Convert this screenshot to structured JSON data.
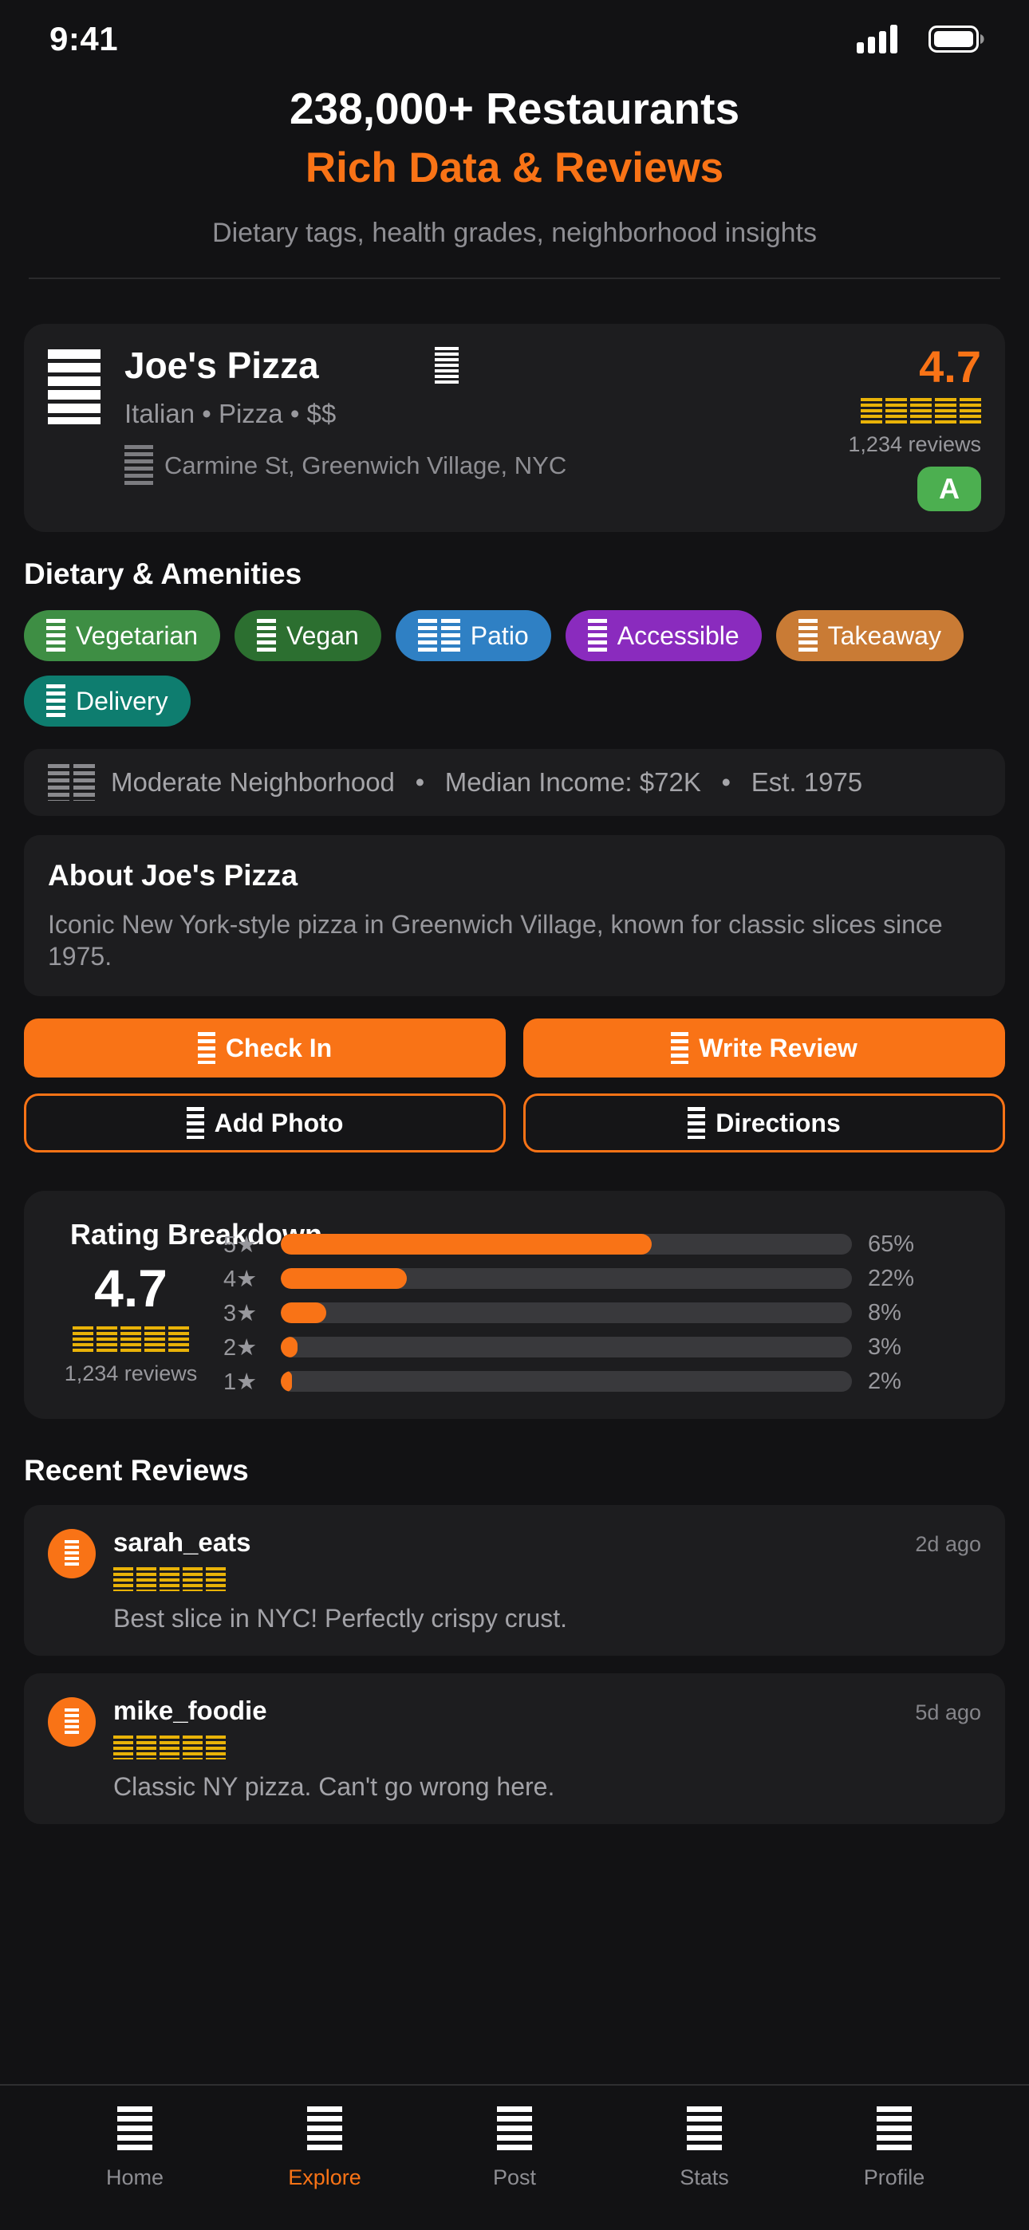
{
  "colors": {
    "accent": "#f97316",
    "gold": "#e9b308",
    "grade": "#4caf50",
    "card": "#1d1d1f",
    "page": "#121214"
  },
  "status_bar": {
    "time": "9:41",
    "icons": [
      "cellular-signal-icon",
      "battery-icon"
    ]
  },
  "header": {
    "title": "238,000+ Restaurants",
    "subtitle": "Rich Data & Reviews",
    "tagline": "Dietary tags, health grades, neighborhood insights"
  },
  "restaurant": {
    "name": "Joe's Pizza",
    "cuisine": "Italian • Pizza • $$",
    "address": "Carmine St, Greenwich Village, NYC",
    "rating": "4.7",
    "stars": 5,
    "reviews_count": "1,234 reviews",
    "health_grade": "A"
  },
  "amenities": {
    "section_title": "Dietary & Amenities",
    "chips": [
      {
        "label": "Vegetarian",
        "color": "#3e8e44",
        "icon": "vegetarian-icon",
        "icon_bars": 1
      },
      {
        "label": "Vegan",
        "color": "#2c6f30",
        "icon": "vegan-icon",
        "icon_bars": 1
      },
      {
        "label": "Patio",
        "color": "#2f80c4",
        "icon": "patio-icon",
        "icon_bars": 2
      },
      {
        "label": "Accessible",
        "color": "#8a2bbe",
        "icon": "accessible-icon",
        "icon_bars": 1
      },
      {
        "label": "Takeaway",
        "color": "#c97b35",
        "icon": "takeaway-icon",
        "icon_bars": 1
      },
      {
        "label": "Delivery",
        "color": "#0e7d6f",
        "icon": "delivery-icon",
        "icon_bars": 1
      }
    ]
  },
  "neighborhood": {
    "text": "Moderate Neighborhood  •  Median Income: $72K  •  Est. 1975"
  },
  "about": {
    "title": "About Joe's Pizza",
    "description": "Iconic New York-style pizza in Greenwich Village, known for classic slices since 1975."
  },
  "actions": [
    {
      "label": "Check In",
      "style": "filled",
      "icon": "check-in-icon"
    },
    {
      "label": "Write Review",
      "style": "filled",
      "icon": "write-review-icon"
    },
    {
      "label": "Add Photo",
      "style": "outline",
      "icon": "add-photo-icon"
    },
    {
      "label": "Directions",
      "style": "outline",
      "icon": "directions-icon"
    }
  ],
  "rating_breakdown": {
    "title": "Rating Breakdown",
    "score": "4.7",
    "stars": 5,
    "reviews_count": "1,234 reviews",
    "rows": [
      {
        "label": "5★",
        "percent": 65,
        "percent_label": "65%"
      },
      {
        "label": "4★",
        "percent": 22,
        "percent_label": "22%"
      },
      {
        "label": "3★",
        "percent": 8,
        "percent_label": "8%"
      },
      {
        "label": "2★",
        "percent": 3,
        "percent_label": "3%"
      },
      {
        "label": "1★",
        "percent": 2,
        "percent_label": "2%"
      }
    ]
  },
  "recent_reviews": {
    "section_title": "Recent Reviews",
    "reviews": [
      {
        "username": "sarah_eats",
        "time_ago": "2d ago",
        "stars": 5,
        "text": "Best slice in NYC! Perfectly crispy crust."
      },
      {
        "username": "mike_foodie",
        "time_ago": "5d ago",
        "stars": 5,
        "text": "Classic NY pizza. Can't go wrong here."
      }
    ]
  },
  "tab_bar": {
    "items": [
      {
        "label": "Home",
        "icon": "home-icon",
        "active": false
      },
      {
        "label": "Explore",
        "icon": "explore-icon",
        "active": true
      },
      {
        "label": "Post",
        "icon": "post-icon",
        "active": false
      },
      {
        "label": "Stats",
        "icon": "stats-icon",
        "active": false
      },
      {
        "label": "Profile",
        "icon": "profile-icon",
        "active": false
      }
    ]
  }
}
